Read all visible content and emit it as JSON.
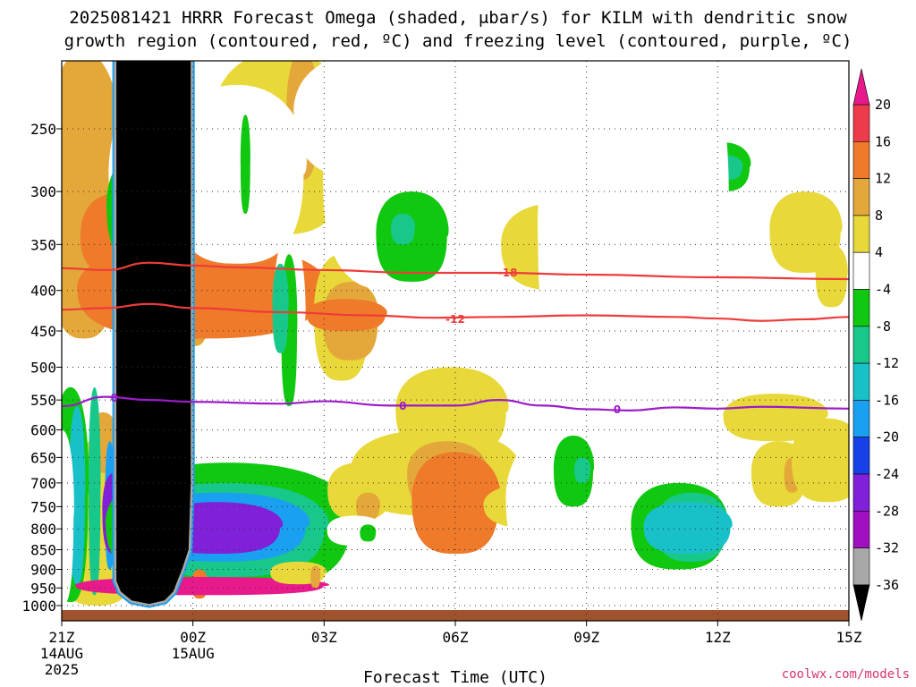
{
  "chart_data": {
    "type": "contour",
    "title_line1": "2025081421 HRRR Forecast Omega (shaded, μbar/s) for KILM with dendritic snow",
    "title_line2": "growth region (contoured, red, ºC) and freezing level (contoured, purple, ºC)",
    "xlabel": "Forecast Time (UTC)",
    "credit": "coolwx.com/models",
    "x_ticks": [
      {
        "hour": 0,
        "label": "21Z",
        "sub": [
          "14AUG",
          "2025"
        ]
      },
      {
        "hour": 3,
        "label": "00Z",
        "sub": [
          "15AUG"
        ]
      },
      {
        "hour": 6,
        "label": "03Z",
        "sub": []
      },
      {
        "hour": 9,
        "label": "06Z",
        "sub": []
      },
      {
        "hour": 12,
        "label": "09Z",
        "sub": []
      },
      {
        "hour": 15,
        "label": "12Z",
        "sub": []
      },
      {
        "hour": 18,
        "label": "15Z",
        "sub": []
      }
    ],
    "xlim": [
      0,
      18
    ],
    "y_ticks": [
      250,
      300,
      350,
      400,
      450,
      500,
      550,
      600,
      650,
      700,
      750,
      800,
      850,
      900,
      950,
      1000
    ],
    "ylim": [
      200,
      1010
    ],
    "yscale": "log-pressure",
    "colorbar": {
      "labels": [
        "20",
        "16",
        "12",
        "8",
        "4",
        "-4",
        "-8",
        "-12",
        "-16",
        "-20",
        "-24",
        "-28",
        "-32",
        "-36"
      ],
      "bands": [
        {
          "lo": 16,
          "hi": 20,
          "color": "#ee3b4b"
        },
        {
          "lo": 12,
          "hi": 16,
          "color": "#ee7a2a"
        },
        {
          "lo": 8,
          "hi": 12,
          "color": "#e4a83a"
        },
        {
          "lo": 4,
          "hi": 8,
          "color": "#e8d83a"
        },
        {
          "lo": -4,
          "hi": 4,
          "color": "#ffffff"
        },
        {
          "lo": -8,
          "hi": -4,
          "color": "#10c810"
        },
        {
          "lo": -12,
          "hi": -8,
          "color": "#18c88a"
        },
        {
          "lo": -16,
          "hi": -12,
          "color": "#18c0c8"
        },
        {
          "lo": -20,
          "hi": -16,
          "color": "#1aa0f0"
        },
        {
          "lo": -24,
          "hi": -20,
          "color": "#1840e8"
        },
        {
          "lo": -28,
          "hi": -24,
          "color": "#8020d8"
        },
        {
          "lo": -32,
          "hi": -28,
          "color": "#a010c0"
        },
        {
          "lo": -36,
          "hi": -32,
          "color": "#a8a8a8"
        }
      ],
      "top_arrow_color": "#e8198a",
      "bottom_arrow_color": "#000000"
    },
    "contours": [
      {
        "label": "-18",
        "color": "#ee3b3b",
        "label_at": [
          10.2,
          380
        ],
        "points": [
          [
            0,
            375
          ],
          [
            1,
            377
          ],
          [
            2,
            369
          ],
          [
            3,
            372
          ],
          [
            4,
            374
          ],
          [
            6,
            377
          ],
          [
            8,
            380
          ],
          [
            10,
            380
          ],
          [
            12,
            382
          ],
          [
            15,
            385
          ],
          [
            18,
            387
          ]
        ]
      },
      {
        "label": "-12",
        "color": "#ee3b3b",
        "label_at": [
          9.0,
          435
        ],
        "points": [
          [
            0,
            423
          ],
          [
            1,
            421
          ],
          [
            2,
            416
          ],
          [
            3,
            421
          ],
          [
            5,
            426
          ],
          [
            7,
            430
          ],
          [
            8.5,
            433
          ],
          [
            10,
            432
          ],
          [
            12,
            430
          ],
          [
            14,
            432
          ],
          [
            15,
            434
          ],
          [
            16,
            437
          ],
          [
            17,
            435
          ],
          [
            18,
            432
          ]
        ]
      },
      {
        "label": "0",
        "color": "#9b1cc8",
        "label_at": [
          7.8,
          560
        ],
        "points": [
          [
            0,
            560
          ],
          [
            1,
            545
          ],
          [
            2,
            550
          ],
          [
            3,
            553
          ],
          [
            5,
            556
          ],
          [
            6,
            552
          ],
          [
            7.5,
            559
          ],
          [
            9,
            559
          ],
          [
            10,
            550
          ],
          [
            11,
            559
          ],
          [
            12,
            565
          ],
          [
            13,
            567
          ],
          [
            14,
            562
          ],
          [
            15,
            564
          ],
          [
            16,
            561
          ],
          [
            18,
            564
          ]
        ]
      }
    ],
    "shaded_regions": [
      {
        "level": -36,
        "color": "#000000",
        "outline": [
          [
            1.25,
            200
          ],
          [
            1.25,
            930
          ],
          [
            1.35,
            960
          ],
          [
            1.6,
            985
          ],
          [
            2.0,
            995
          ],
          [
            2.35,
            985
          ],
          [
            2.55,
            960
          ],
          [
            2.75,
            900
          ],
          [
            2.9,
            850
          ],
          [
            2.95,
            700
          ],
          [
            2.95,
            200
          ]
        ]
      }
    ]
  }
}
